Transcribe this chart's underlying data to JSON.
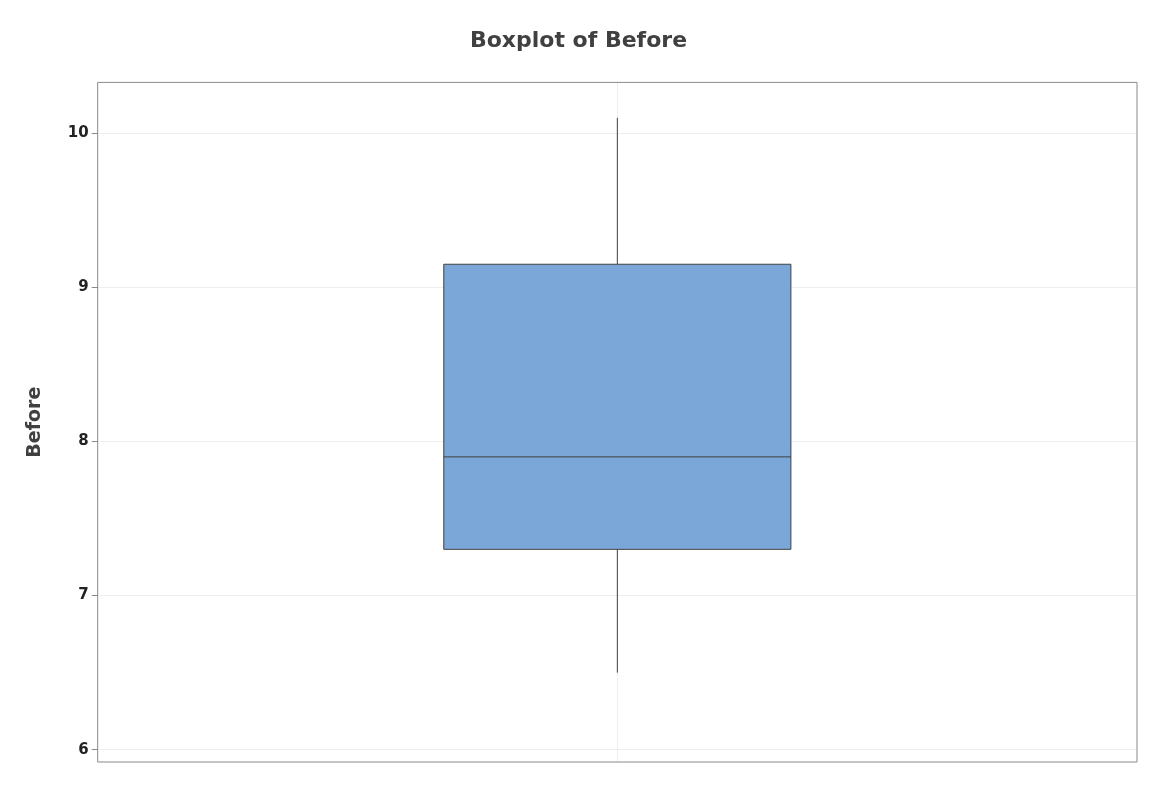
{
  "chart_data": {
    "type": "box",
    "title": "Boxplot of Before",
    "ylabel": "Before",
    "categories": [
      null
    ],
    "boxes": [
      {
        "low": 6.5,
        "q1": 7.3,
        "median": 7.9,
        "q3": 9.15,
        "high": 10.1
      }
    ],
    "color": "#7ba6d8",
    "ylim": [
      5.92,
      10.33
    ],
    "yticks": [
      6,
      7,
      8,
      9,
      10
    ],
    "grid": true,
    "tick_labels": "y"
  }
}
